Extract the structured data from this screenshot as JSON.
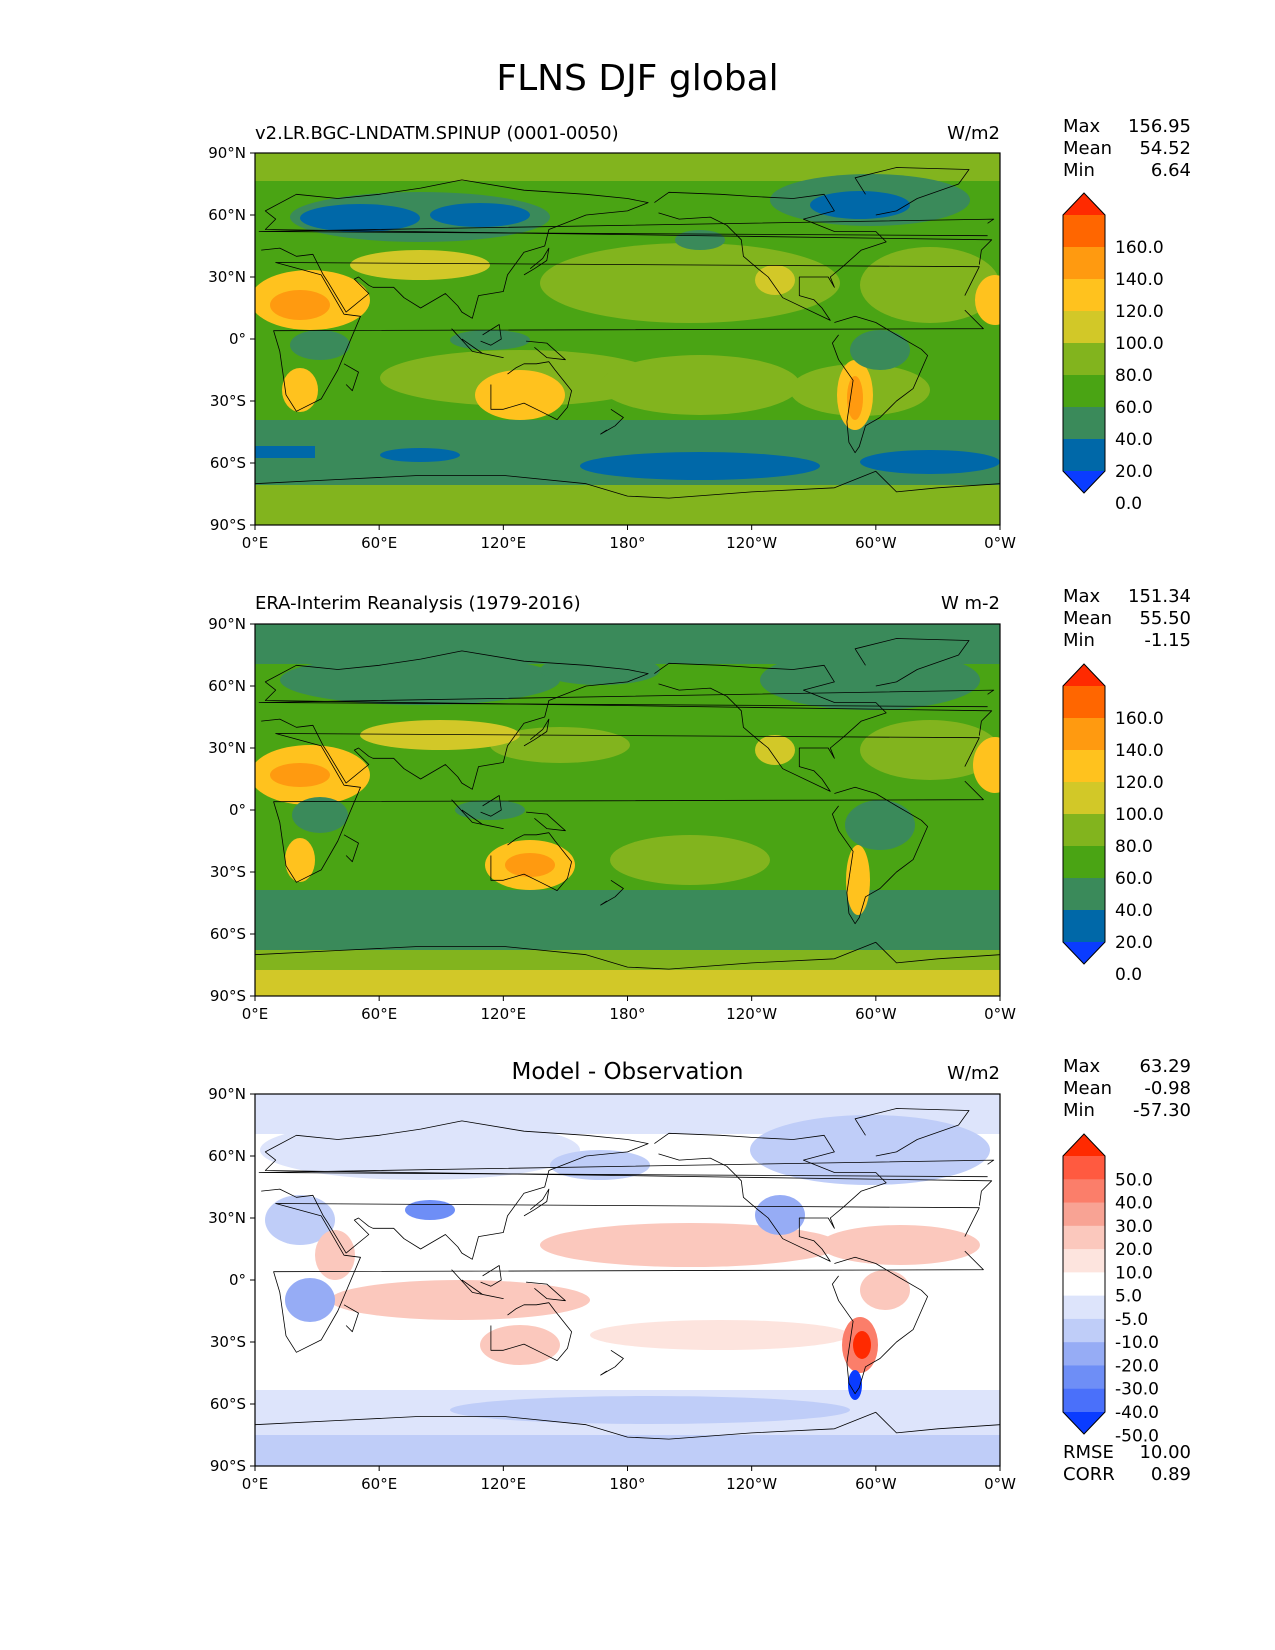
{
  "title": "FLNS DJF global",
  "lat_ticks": [
    "90°N",
    "60°N",
    "30°N",
    "0°",
    "30°S",
    "60°S",
    "90°S"
  ],
  "lon_ticks": [
    "0°E",
    "60°E",
    "120°E",
    "180°",
    "120°W",
    "60°W",
    "0°W"
  ],
  "panels": [
    {
      "title": "v2.LR.BGC-LNDATM.SPINUP (0001-0050)",
      "title_style": "left",
      "units": "W/m2",
      "stats": [
        {
          "label": "Max",
          "value": "156.95"
        },
        {
          "label": "Mean",
          "value": "54.52"
        },
        {
          "label": "Min",
          "value": "6.64"
        }
      ],
      "colorbar_levels": [
        "160.0",
        "140.0",
        "120.0",
        "100.0",
        "80.0",
        "60.0",
        "40.0",
        "20.0",
        "0.0"
      ],
      "colorbar_colors": [
        "#ff2a00",
        "#ff6600",
        "#ff9a10",
        "#ffc21e",
        "#d2c828",
        "#82b41e",
        "#4aa414",
        "#3a8a5a",
        "#0068a8",
        "#0a3cff"
      ]
    },
    {
      "title": "ERA-Interim Reanalysis (1979-2016)",
      "title_style": "left",
      "units": "W m-2",
      "stats": [
        {
          "label": "Max",
          "value": "151.34"
        },
        {
          "label": "Mean",
          "value": "55.50"
        },
        {
          "label": "Min",
          "value": "-1.15"
        }
      ],
      "colorbar_levels": [
        "160.0",
        "140.0",
        "120.0",
        "100.0",
        "80.0",
        "60.0",
        "40.0",
        "20.0",
        "0.0"
      ],
      "colorbar_colors": [
        "#ff2a00",
        "#ff6600",
        "#ff9a10",
        "#ffc21e",
        "#d2c828",
        "#82b41e",
        "#4aa414",
        "#3a8a5a",
        "#0068a8",
        "#0a3cff"
      ]
    },
    {
      "title": "Model - Observation",
      "title_style": "center",
      "units": "W/m2",
      "stats": [
        {
          "label": "Max",
          "value": "63.29"
        },
        {
          "label": "Mean",
          "value": "-0.98"
        },
        {
          "label": "Min",
          "value": "-57.30"
        }
      ],
      "colorbar_levels": [
        "50.0",
        "40.0",
        "30.0",
        "20.0",
        "10.0",
        "5.0",
        "-5.0",
        "-10.0",
        "-20.0",
        "-30.0",
        "-40.0",
        "-50.0"
      ],
      "colorbar_colors": [
        "#ff2a00",
        "#ff5a40",
        "#fb7e6a",
        "#f8a394",
        "#fbc8bd",
        "#fde4de",
        "#ffffff",
        "#dde4fb",
        "#bfcdf8",
        "#96acf5",
        "#6e8ef6",
        "#4a70fa",
        "#0a3cff"
      ],
      "extra_stats": [
        {
          "label": "RMSE",
          "value": "10.00"
        },
        {
          "label": "CORR",
          "value": "0.89"
        }
      ]
    }
  ]
}
